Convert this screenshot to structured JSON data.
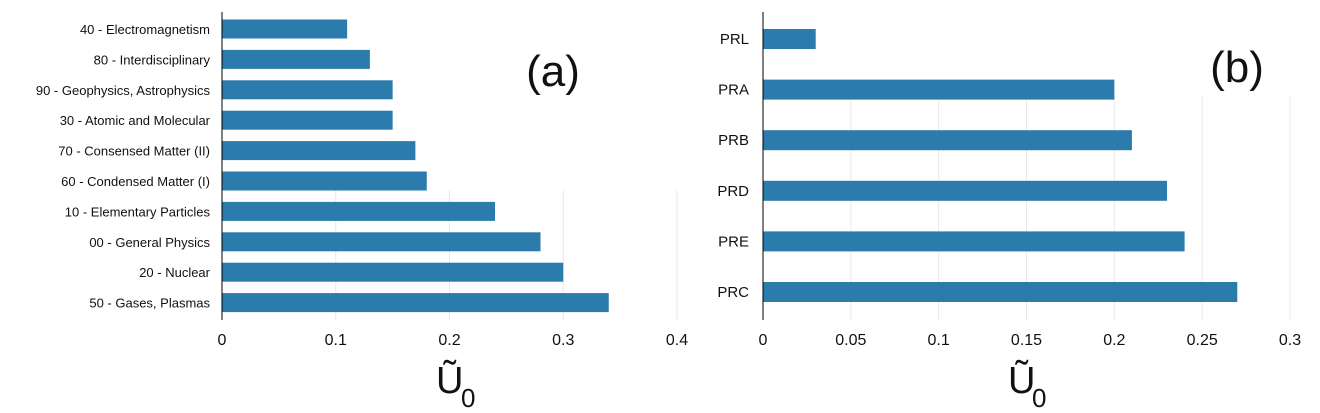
{
  "chart_data": [
    {
      "type": "bar",
      "orientation": "horizontal",
      "panel_label": "(a)",
      "xlabel": "Ũ",
      "xlabel_subscript": "0",
      "color": "#2b7bac",
      "grid": true,
      "xlim": [
        0,
        0.4
      ],
      "xticks": [
        0,
        0.1,
        0.2,
        0.3,
        0.4
      ],
      "xtick_labels": [
        "0",
        "0.1",
        "0.2",
        "0.3",
        "0.4"
      ],
      "categories": [
        "40 - Electromagnetism",
        "80 - Interdisciplinary",
        "90 - Geophysics, Astrophysics",
        "30 - Atomic and Molecular",
        "70 - Consensed Matter (II)",
        "60 - Condensed Matter (I)",
        "10 - Elementary Particles",
        "00 - General Physics",
        "20 - Nuclear",
        "50 - Gases, Plasmas"
      ],
      "values": [
        0.11,
        0.13,
        0.15,
        0.15,
        0.17,
        0.18,
        0.24,
        0.28,
        0.3,
        0.34
      ]
    },
    {
      "type": "bar",
      "orientation": "horizontal",
      "panel_label": "(b)",
      "xlabel": "Ũ",
      "xlabel_subscript": "0",
      "color": "#2b7bac",
      "grid": true,
      "xlim": [
        0,
        0.3
      ],
      "xticks": [
        0,
        0.05,
        0.1,
        0.15,
        0.2,
        0.25,
        0.3
      ],
      "xtick_labels": [
        "0",
        "0.05",
        "0.1",
        "0.15",
        "0.2",
        "0.25",
        "0.3"
      ],
      "categories": [
        "PRL",
        "PRA",
        "PRB",
        "PRD",
        "PRE",
        "PRC"
      ],
      "values": [
        0.03,
        0.2,
        0.21,
        0.23,
        0.24,
        0.27
      ]
    }
  ]
}
